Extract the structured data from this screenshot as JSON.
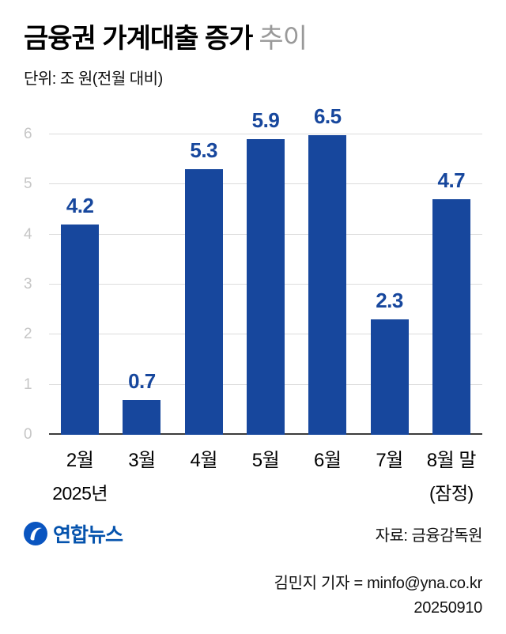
{
  "header": {
    "title_main": "금융권 가계대출 증가",
    "title_sub": "추이",
    "unit_label": "단위: 조 원(전월 대비)"
  },
  "chart_data": {
    "type": "bar",
    "title": "금융권 가계대출 증가 추이",
    "unit": "조 원(전월 대비)",
    "categories": [
      "2월",
      "3월",
      "4월",
      "5월",
      "6월",
      "7월",
      "8월 말"
    ],
    "category_sublabels": [
      "2025년",
      "",
      "",
      "",
      "",
      "",
      "(잠정)"
    ],
    "values": [
      4.2,
      0.7,
      5.3,
      5.9,
      6.5,
      2.3,
      4.7
    ],
    "value_labels": [
      "4.2",
      "0.7",
      "5.3",
      "5.9",
      "6.5",
      "2.3",
      "4.7"
    ],
    "yticks": [
      0,
      1,
      2,
      3,
      4,
      5,
      6
    ],
    "ylim": [
      0,
      6.6
    ],
    "grid": true,
    "legend": false,
    "bar_color": "#17479d",
    "value_label_color": "#17479d"
  },
  "footer": {
    "logo_text": "연합뉴스",
    "source": "자료: 금융감독원",
    "credit": "김민지 기자 = minfo@yna.co.kr",
    "date": "20250910"
  },
  "colors": {
    "bar": "#17479d",
    "grid": "#dcdcdc",
    "axis_baseline": "#3c3c3c",
    "ytick_text": "#c6c6c6",
    "title_sub": "#999999",
    "logo_blue": "#0a55c0"
  }
}
